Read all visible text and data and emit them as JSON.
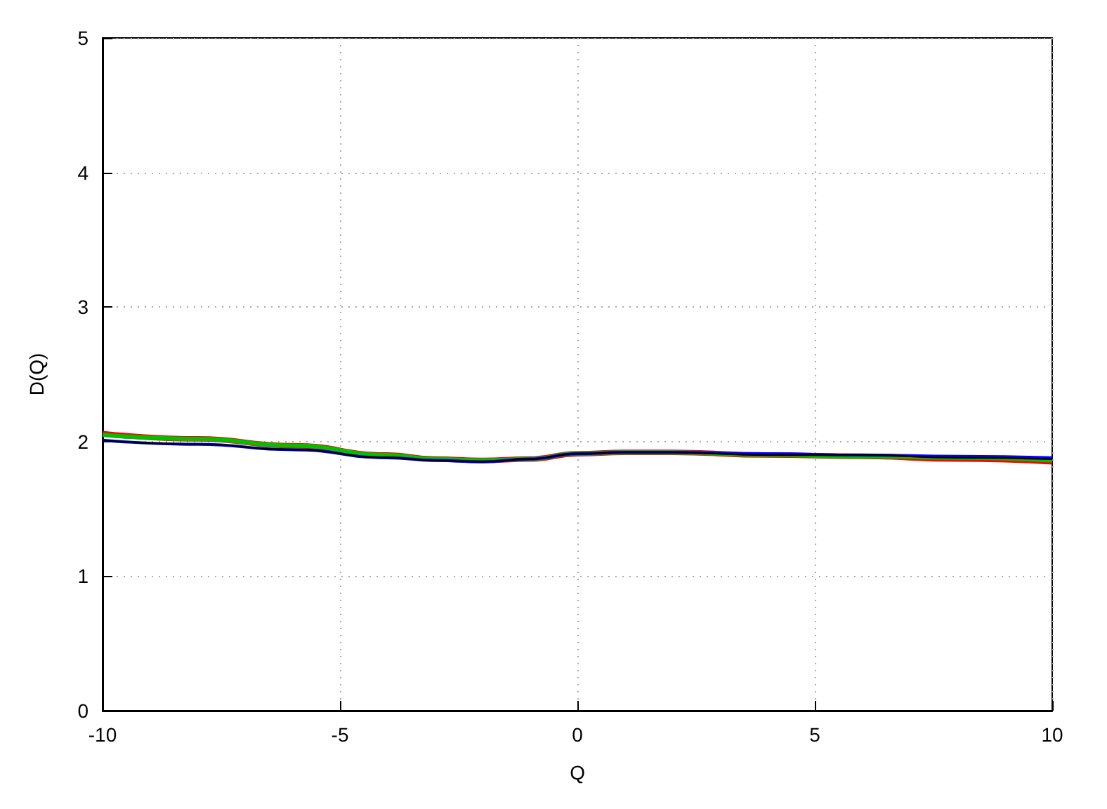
{
  "chart_data": {
    "type": "line",
    "xlabel": "Q",
    "ylabel": "D(Q)",
    "x": [
      -10,
      -8,
      -6,
      -4,
      -3,
      -2,
      -1,
      0,
      1,
      2,
      4,
      6,
      8,
      10
    ],
    "series": [
      {
        "color": "#ff0000",
        "values": [
          2.06,
          2.02,
          1.97,
          1.9,
          1.87,
          1.86,
          1.87,
          1.91,
          1.92,
          1.92,
          1.9,
          1.89,
          1.87,
          1.85
        ]
      },
      {
        "color": "#00c000",
        "values": [
          2.05,
          2.02,
          1.97,
          1.9,
          1.87,
          1.86,
          1.87,
          1.91,
          1.92,
          1.92,
          1.9,
          1.89,
          1.88,
          1.86
        ]
      },
      {
        "color": "#0000ff",
        "values": [
          2.01,
          1.98,
          1.94,
          1.88,
          1.86,
          1.85,
          1.87,
          1.91,
          1.92,
          1.92,
          1.91,
          1.9,
          1.89,
          1.88
        ]
      },
      {
        "color": "#000000",
        "values": [
          2.01,
          1.98,
          1.94,
          1.88,
          1.86,
          1.85,
          1.87,
          1.91,
          1.92,
          1.92,
          1.9,
          1.9,
          1.88,
          1.87
        ]
      }
    ],
    "xlim": [
      -10,
      10
    ],
    "xticks": [
      -10,
      -5,
      0,
      5,
      10
    ],
    "ylim": [
      0,
      5
    ],
    "yticks": [
      0,
      1,
      2,
      3,
      4,
      5
    ],
    "grid": true,
    "marker": "none",
    "line_style": "solid"
  }
}
